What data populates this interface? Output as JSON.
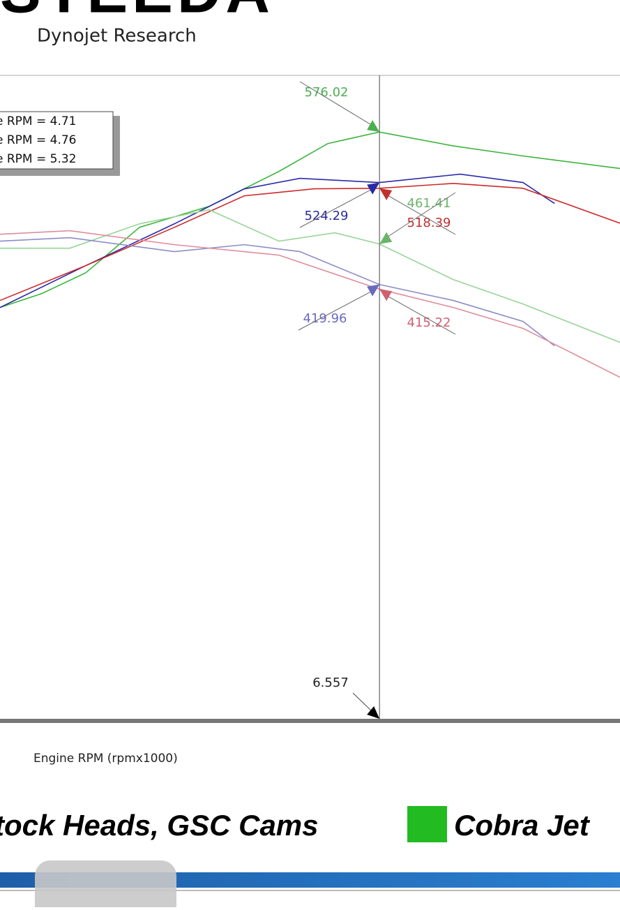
{
  "header": {
    "logo": "STEEDA",
    "subtitle": "Dynojet Research"
  },
  "chart_data": {
    "type": "line",
    "x_label": "Engine RPM (rpmx1000)",
    "xlim": [
      4.545,
      7.832
    ],
    "xticks": [
      5,
      6,
      7
    ],
    "x_minor_ticks": [
      5.5,
      6.5,
      7.5
    ],
    "ylim": [
      -26,
      634
    ],
    "yticks": [
      0,
      50,
      100,
      150,
      200,
      250,
      300,
      350,
      400,
      450,
      500,
      550,
      600
    ],
    "grid": true,
    "legend_entries": [
      "e RPM = 4.71",
      "e RPM = 4.76",
      "e RPM = 5.32"
    ],
    "series": [
      {
        "color": "#3cb43c",
        "x": [
          4.545,
          4.767,
          5.0,
          5.285,
          5.654,
          6.024,
          6.283,
          6.556,
          6.948,
          7.318,
          7.832
        ],
        "values": [
          396.4,
          410.7,
          432,
          478.5,
          500,
          535.7,
          564.2,
          576,
          561.8,
          551.5,
          538.7
        ]
      },
      {
        "color": "#2a2aa8",
        "x": [
          4.545,
          5.0,
          5.47,
          5.84,
          6.135,
          6.556,
          6.985,
          7.318,
          7.485
        ],
        "values": [
          396.4,
          439.3,
          482.1,
          517.8,
          528.6,
          524.3,
          532.9,
          524.3,
          502.9
        ]
      },
      {
        "color": "#cc2a2a",
        "x": [
          4.545,
          5.0,
          5.47,
          5.84,
          6.21,
          6.556,
          6.948,
          7.318,
          7.832
        ],
        "values": [
          403.6,
          439.3,
          478.5,
          510.7,
          517.9,
          518.4,
          523.4,
          518.4,
          482.7
        ]
      },
      {
        "color": "#98d498",
        "x": [
          4.545,
          4.915,
          5.285,
          5.654,
          6.024,
          6.32,
          6.556,
          6.948,
          7.318,
          7.832
        ],
        "values": [
          457.1,
          457.1,
          482.1,
          496.4,
          464.3,
          472.9,
          461.4,
          425,
          400,
          360.7
        ]
      },
      {
        "color": "#8c8cc8",
        "x": [
          4.545,
          4.915,
          5.47,
          5.84,
          6.135,
          6.556,
          6.948,
          7.318,
          7.485
        ],
        "values": [
          464.3,
          467.9,
          453.6,
          460.7,
          453.6,
          420,
          403.6,
          382.1,
          357.1
        ]
      },
      {
        "color": "#e08c9c",
        "x": [
          4.545,
          4.915,
          5.47,
          6.024,
          6.556,
          6.948,
          7.318,
          7.832
        ],
        "values": [
          471.4,
          475,
          460.7,
          450,
          415.2,
          396.4,
          375,
          325
        ]
      }
    ],
    "cursor_x": 6.557,
    "cursor_values": [
      576.02,
      524.29,
      518.39,
      461.41,
      419.96,
      415.22
    ],
    "cursor_colors": [
      "#4caf50",
      "#2a2aa0",
      "#c03030",
      "#6ab46a",
      "#6a6ac0",
      "#d06070"
    ]
  },
  "footer": {
    "left_label": "tock Heads, GSC Cams",
    "right_label": "Cobra Jet",
    "right_color": "#22bb22"
  }
}
